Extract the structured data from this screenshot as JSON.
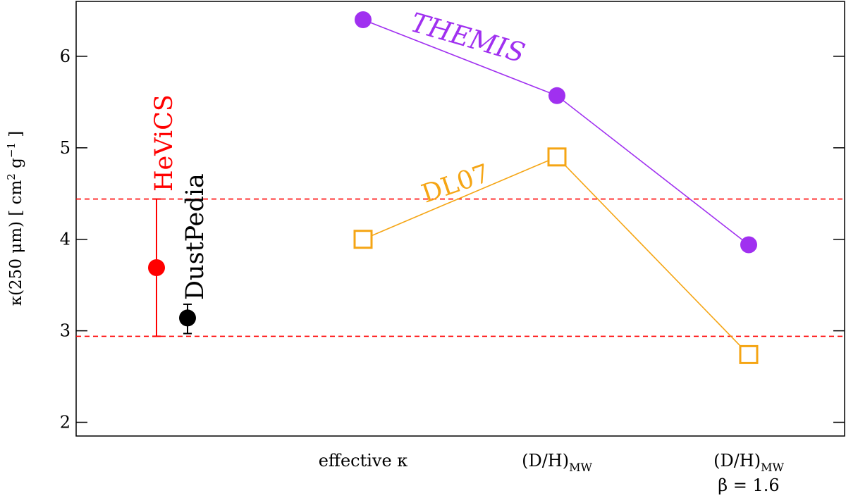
{
  "chart_data": {
    "type": "scatter",
    "ylabel": {
      "base": "κ(250 μm)  [ cm",
      "sup1": "2",
      "mid": " g",
      "sup2": "−1",
      "end": " ]"
    },
    "ylim": [
      1.85,
      6.6
    ],
    "yticks": [
      2,
      3,
      4,
      5,
      6
    ],
    "ytick_labels": [
      "2",
      "3",
      "4",
      "5",
      "6"
    ],
    "grid": false,
    "categories": [
      {
        "label": "effective κ",
        "sub": "",
        "line2": ""
      },
      {
        "label": "(D/H)",
        "sub": "MW",
        "line2": ""
      },
      {
        "label": "(D/H)",
        "sub": "MW",
        "line2": "β = 1.6"
      }
    ],
    "series": [
      {
        "name": "THEMIS",
        "color": "#a030f0",
        "marker": "filled-circle",
        "values": [
          6.4,
          5.57,
          3.94
        ]
      },
      {
        "name": "DL07",
        "color": "#f5a514",
        "marker": "open-square",
        "values": [
          4.0,
          4.9,
          2.74
        ]
      }
    ],
    "measurements": [
      {
        "name": "HeViCS",
        "color": "#ff0000",
        "value": 3.69,
        "err_low": 2.94,
        "err_high": 4.44
      },
      {
        "name": "DustPedia",
        "color": "#000000",
        "value": 3.14,
        "err_low": 2.97,
        "err_high": 3.29
      }
    ],
    "reference_lines": [
      {
        "y": 4.44,
        "color": "#ff0000",
        "style": "dashed"
      },
      {
        "y": 2.94,
        "color": "#ff0000",
        "style": "dashed"
      }
    ]
  }
}
